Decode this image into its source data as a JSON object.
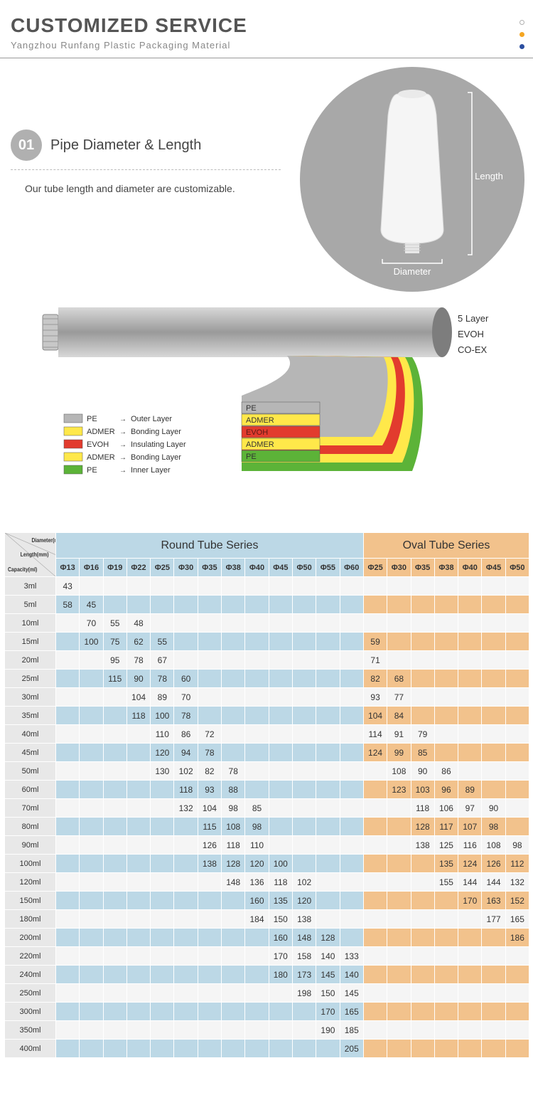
{
  "header": {
    "title": "CUSTOMIZED SERVICE",
    "subtitle": "Yangzhou Runfang Plastic Packaging Material",
    "dot_colors": [
      "#ffffff",
      "#f5a623",
      "#2c4fa0"
    ],
    "dot_border": "#b0b0b0"
  },
  "section1": {
    "num": "01",
    "title": "Pipe Diameter & Length",
    "desc": "Our tube length and diameter are customizable.",
    "circle_bg": "#a8a8a8",
    "tube_color": "#f2f2f2",
    "label_length": "Length",
    "label_diameter": "Diameter"
  },
  "layers": {
    "side_labels": [
      "5 Layer",
      "EVOH",
      "CO-EX"
    ],
    "legend": [
      {
        "color": "#b6b6b6",
        "name": "PE",
        "role": "Outer Layer"
      },
      {
        "color": "#ffe84a",
        "name": "ADMER",
        "role": "Bonding Layer"
      },
      {
        "color": "#e23b2e",
        "name": "EVOH",
        "role": "Insulating Layer"
      },
      {
        "color": "#ffe84a",
        "name": "ADMER",
        "role": "Bonding Layer"
      },
      {
        "color": "#5cb338",
        "name": "PE",
        "role": "Inner Layer"
      }
    ],
    "box_labels": [
      "PE",
      "ADMER",
      "EVOH",
      "ADMER",
      "PE"
    ],
    "box_colors": [
      "#b6b6b6",
      "#ffe84a",
      "#e23b2e",
      "#ffe84a",
      "#5cb338"
    ]
  },
  "table": {
    "corner": [
      "Diameter(mm)",
      "Length(mm)",
      "Capacity(ml)"
    ],
    "round_header": "Round Tube Series",
    "oval_header": "Oval Tube Series",
    "round_cols": [
      "Φ13",
      "Φ16",
      "Φ19",
      "Φ22",
      "Φ25",
      "Φ30",
      "Φ35",
      "Φ38",
      "Φ40",
      "Φ45",
      "Φ50",
      "Φ55",
      "Φ60"
    ],
    "oval_cols": [
      "Φ25",
      "Φ30",
      "Φ35",
      "Φ38",
      "Φ40",
      "Φ45",
      "Φ50"
    ],
    "rows": [
      {
        "cap": "3ml",
        "r": [
          "43",
          "",
          "",
          "",
          "",
          "",
          "",
          "",
          "",
          "",
          "",
          "",
          ""
        ],
        "o": [
          "",
          "",
          "",
          "",
          "",
          "",
          ""
        ]
      },
      {
        "cap": "5ml",
        "r": [
          "58",
          "45",
          "",
          "",
          "",
          "",
          "",
          "",
          "",
          "",
          "",
          "",
          ""
        ],
        "o": [
          "",
          "",
          "",
          "",
          "",
          "",
          ""
        ]
      },
      {
        "cap": "10ml",
        "r": [
          "",
          "70",
          "55",
          "48",
          "",
          "",
          "",
          "",
          "",
          "",
          "",
          "",
          ""
        ],
        "o": [
          "",
          "",
          "",
          "",
          "",
          "",
          ""
        ]
      },
      {
        "cap": "15ml",
        "r": [
          "",
          "100",
          "75",
          "62",
          "55",
          "",
          "",
          "",
          "",
          "",
          "",
          "",
          ""
        ],
        "o": [
          "59",
          "",
          "",
          "",
          "",
          "",
          ""
        ]
      },
      {
        "cap": "20ml",
        "r": [
          "",
          "",
          "95",
          "78",
          "67",
          "",
          "",
          "",
          "",
          "",
          "",
          "",
          ""
        ],
        "o": [
          "71",
          "",
          "",
          "",
          "",
          "",
          ""
        ]
      },
      {
        "cap": "25ml",
        "r": [
          "",
          "",
          "115",
          "90",
          "78",
          "60",
          "",
          "",
          "",
          "",
          "",
          "",
          ""
        ],
        "o": [
          "82",
          "68",
          "",
          "",
          "",
          "",
          ""
        ]
      },
      {
        "cap": "30ml",
        "r": [
          "",
          "",
          "",
          "104",
          "89",
          "70",
          "",
          "",
          "",
          "",
          "",
          "",
          ""
        ],
        "o": [
          "93",
          "77",
          "",
          "",
          "",
          "",
          ""
        ]
      },
      {
        "cap": "35ml",
        "r": [
          "",
          "",
          "",
          "118",
          "100",
          "78",
          "",
          "",
          "",
          "",
          "",
          "",
          ""
        ],
        "o": [
          "104",
          "84",
          "",
          "",
          "",
          "",
          ""
        ]
      },
      {
        "cap": "40ml",
        "r": [
          "",
          "",
          "",
          "",
          "110",
          "86",
          "72",
          "",
          "",
          "",
          "",
          "",
          ""
        ],
        "o": [
          "114",
          "91",
          "79",
          "",
          "",
          "",
          ""
        ]
      },
      {
        "cap": "45ml",
        "r": [
          "",
          "",
          "",
          "",
          "120",
          "94",
          "78",
          "",
          "",
          "",
          "",
          "",
          ""
        ],
        "o": [
          "124",
          "99",
          "85",
          "",
          "",
          "",
          ""
        ]
      },
      {
        "cap": "50ml",
        "r": [
          "",
          "",
          "",
          "",
          "130",
          "102",
          "82",
          "78",
          "",
          "",
          "",
          "",
          ""
        ],
        "o": [
          "",
          "108",
          "90",
          "86",
          "",
          "",
          ""
        ]
      },
      {
        "cap": "60ml",
        "r": [
          "",
          "",
          "",
          "",
          "",
          "118",
          "93",
          "88",
          "",
          "",
          "",
          "",
          ""
        ],
        "o": [
          "",
          "123",
          "103",
          "96",
          "89",
          "",
          ""
        ]
      },
      {
        "cap": "70ml",
        "r": [
          "",
          "",
          "",
          "",
          "",
          "132",
          "104",
          "98",
          "85",
          "",
          "",
          "",
          ""
        ],
        "o": [
          "",
          "",
          "118",
          "106",
          "97",
          "90",
          ""
        ]
      },
      {
        "cap": "80ml",
        "r": [
          "",
          "",
          "",
          "",
          "",
          "",
          "115",
          "108",
          "98",
          "",
          "",
          "",
          ""
        ],
        "o": [
          "",
          "",
          "128",
          "117",
          "107",
          "98",
          ""
        ]
      },
      {
        "cap": "90ml",
        "r": [
          "",
          "",
          "",
          "",
          "",
          "",
          "126",
          "118",
          "110",
          "",
          "",
          "",
          ""
        ],
        "o": [
          "",
          "",
          "138",
          "125",
          "116",
          "108",
          "98"
        ]
      },
      {
        "cap": "100ml",
        "r": [
          "",
          "",
          "",
          "",
          "",
          "",
          "138",
          "128",
          "120",
          "100",
          "",
          "",
          ""
        ],
        "o": [
          "",
          "",
          "",
          "135",
          "124",
          "126",
          "112"
        ]
      },
      {
        "cap": "120ml",
        "r": [
          "",
          "",
          "",
          "",
          "",
          "",
          "",
          "148",
          "136",
          "118",
          "102",
          "",
          ""
        ],
        "o": [
          "",
          "",
          "",
          "155",
          "144",
          "144",
          "132"
        ]
      },
      {
        "cap": "150ml",
        "r": [
          "",
          "",
          "",
          "",
          "",
          "",
          "",
          "",
          "160",
          "135",
          "120",
          "",
          ""
        ],
        "o": [
          "",
          "",
          "",
          "",
          "170",
          "163",
          "152"
        ]
      },
      {
        "cap": "180ml",
        "r": [
          "",
          "",
          "",
          "",
          "",
          "",
          "",
          "",
          "184",
          "150",
          "138",
          "",
          ""
        ],
        "o": [
          "",
          "",
          "",
          "",
          "",
          "177",
          "165"
        ]
      },
      {
        "cap": "200ml",
        "r": [
          "",
          "",
          "",
          "",
          "",
          "",
          "",
          "",
          "",
          "160",
          "148",
          "128",
          ""
        ],
        "o": [
          "",
          "",
          "",
          "",
          "",
          "",
          "186"
        ]
      },
      {
        "cap": "220ml",
        "r": [
          "",
          "",
          "",
          "",
          "",
          "",
          "",
          "",
          "",
          "170",
          "158",
          "140",
          "133"
        ],
        "o": [
          "",
          "",
          "",
          "",
          "",
          "",
          ""
        ]
      },
      {
        "cap": "240ml",
        "r": [
          "",
          "",
          "",
          "",
          "",
          "",
          "",
          "",
          "",
          "180",
          "173",
          "145",
          "140"
        ],
        "o": [
          "",
          "",
          "",
          "",
          "",
          "",
          ""
        ]
      },
      {
        "cap": "250ml",
        "r": [
          "",
          "",
          "",
          "",
          "",
          "",
          "",
          "",
          "",
          "",
          "198",
          "150",
          "145"
        ],
        "o": [
          "",
          "",
          "",
          "",
          "",
          "",
          ""
        ]
      },
      {
        "cap": "300ml",
        "r": [
          "",
          "",
          "",
          "",
          "",
          "",
          "",
          "",
          "",
          "",
          "",
          "170",
          "165"
        ],
        "o": [
          "",
          "",
          "",
          "",
          "",
          "",
          ""
        ]
      },
      {
        "cap": "350ml",
        "r": [
          "",
          "",
          "",
          "",
          "",
          "",
          "",
          "",
          "",
          "",
          "",
          "190",
          "185"
        ],
        "o": [
          "",
          "",
          "",
          "",
          "",
          "",
          ""
        ]
      },
      {
        "cap": "400ml",
        "r": [
          "",
          "",
          "",
          "",
          "",
          "",
          "",
          "",
          "",
          "",
          "",
          "",
          "205"
        ],
        "o": [
          "",
          "",
          "",
          "",
          "",
          "",
          ""
        ]
      }
    ],
    "colors": {
      "round_hdr": "#bcd8e6",
      "oval_hdr": "#f2c28c",
      "row_even_r": "#bcd8e6",
      "row_odd_r": "#f5f5f5",
      "row_even_o": "#f2c28c",
      "row_odd_o": "#f5f5f5",
      "rowlabel": "#e8e8e8"
    }
  }
}
